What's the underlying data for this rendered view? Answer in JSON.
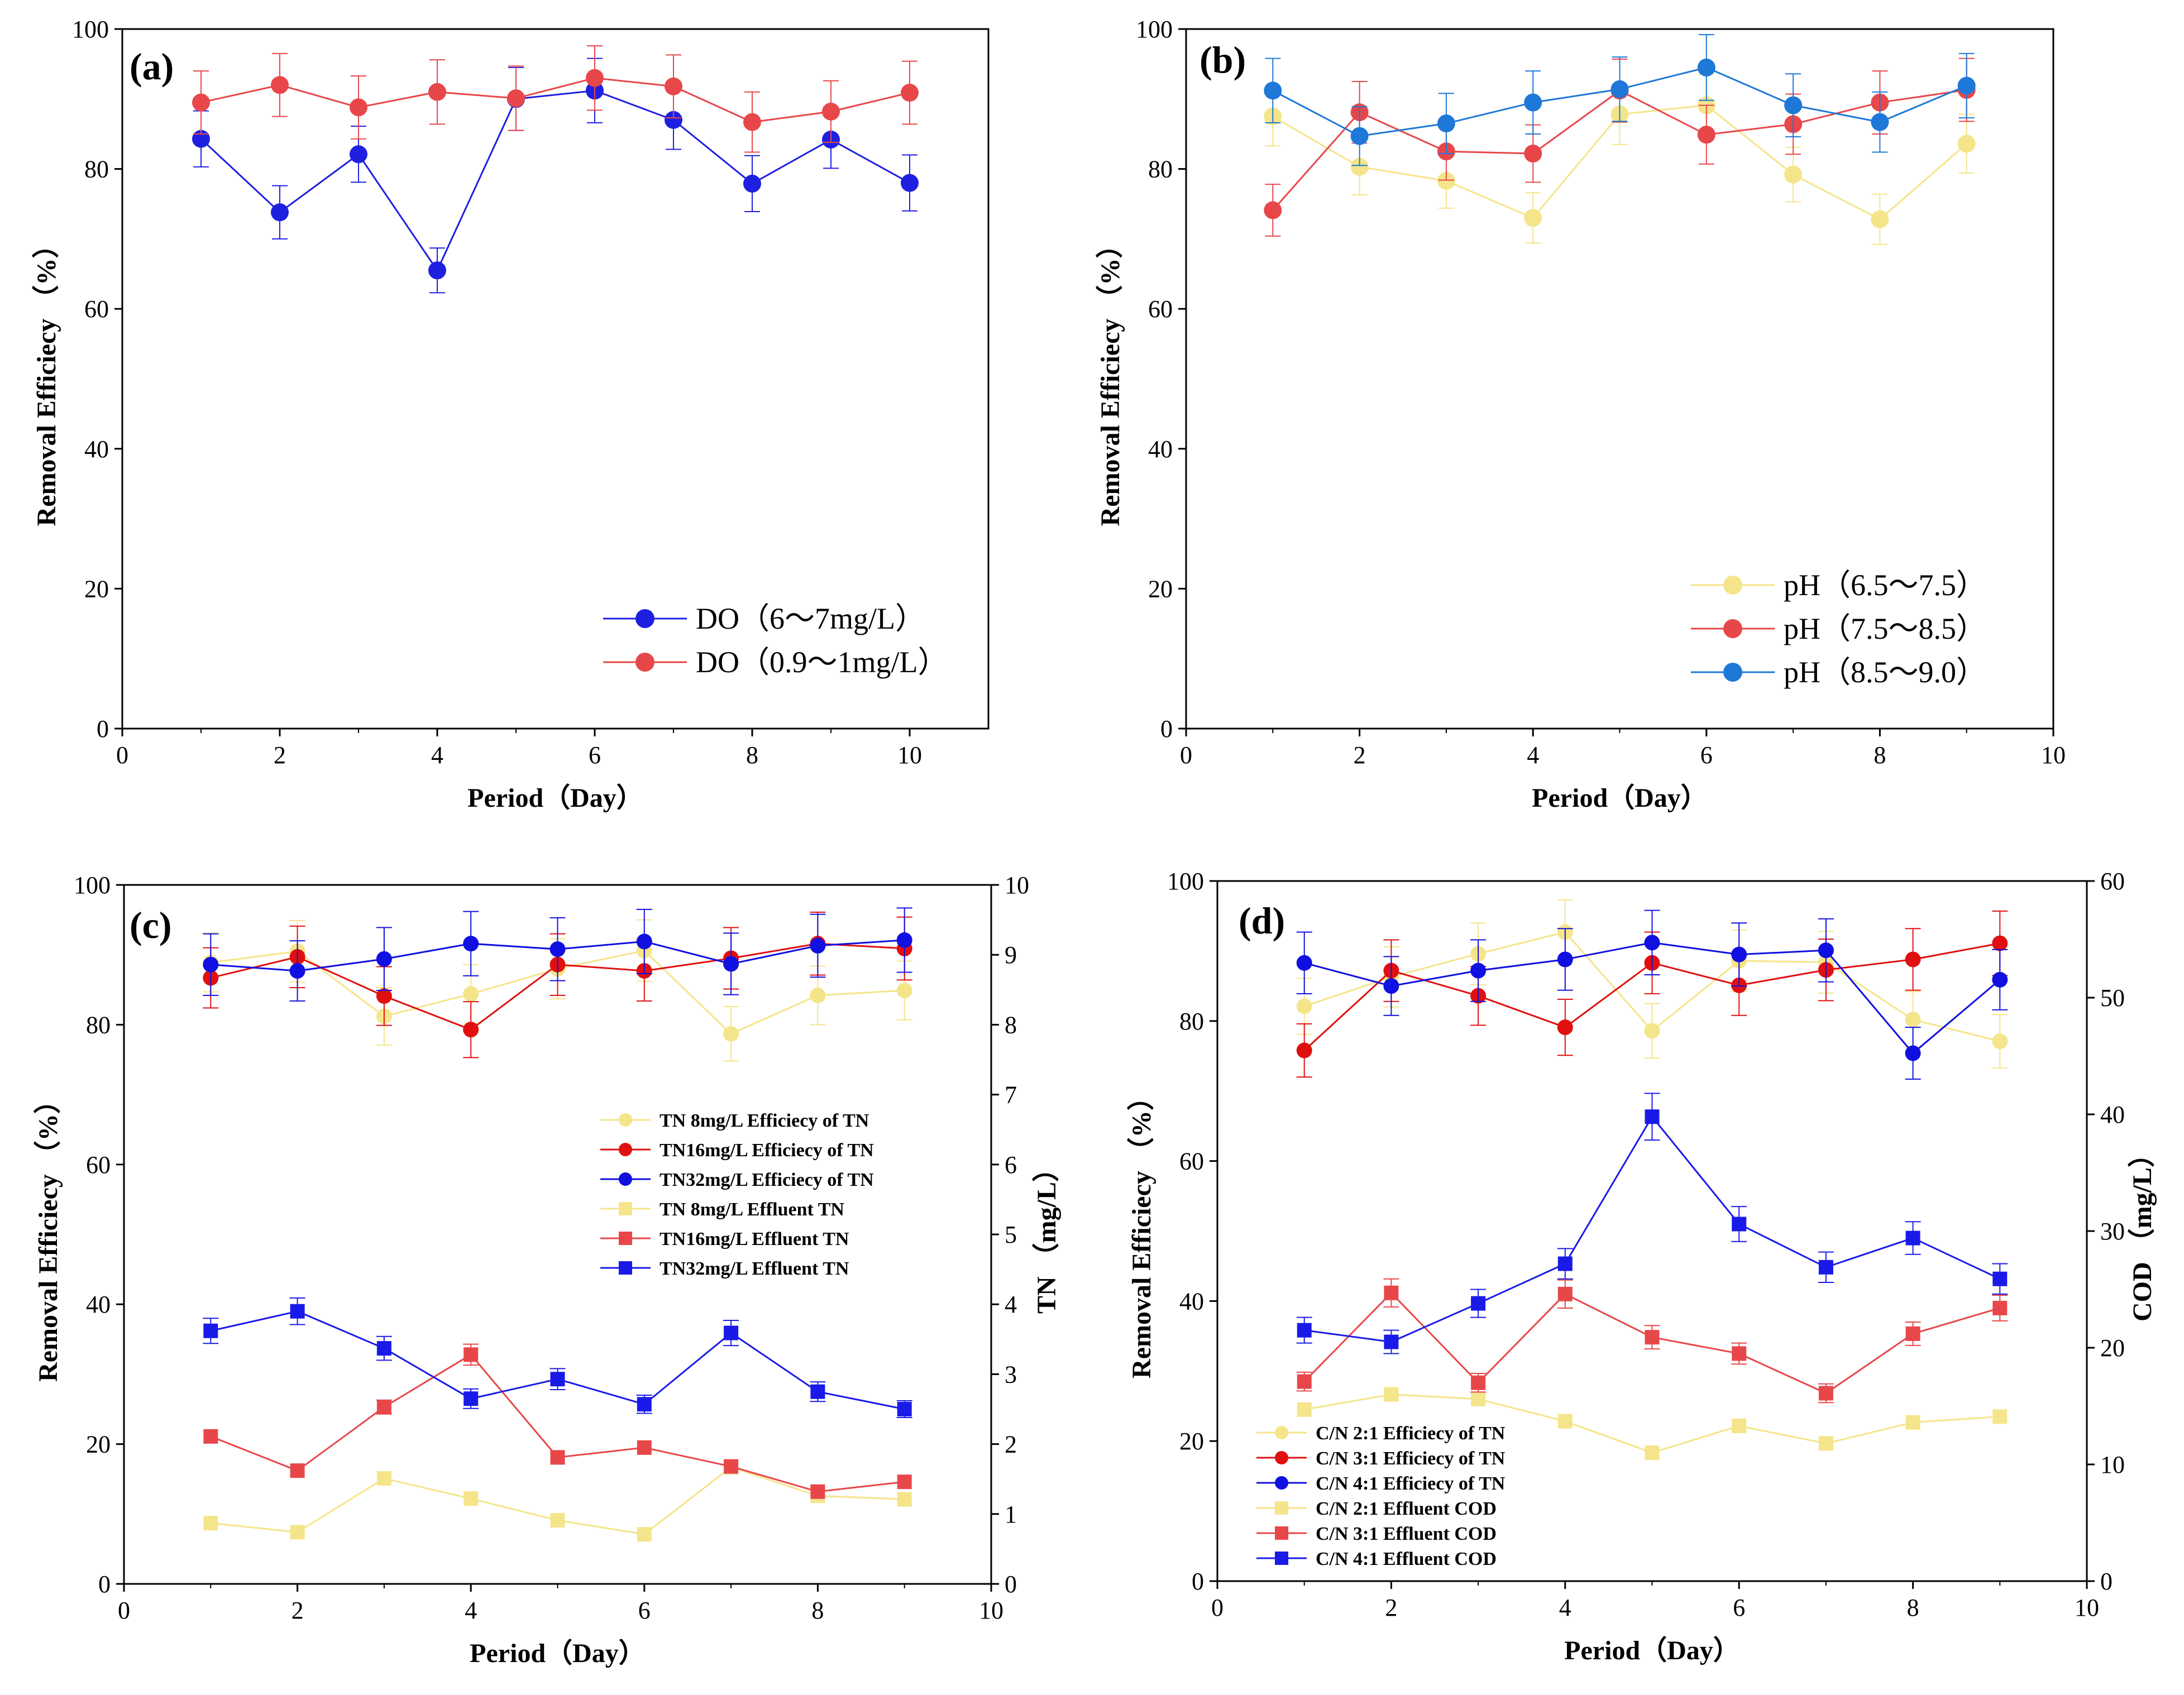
{
  "chart_data": [
    {
      "panel": "(a)",
      "type": "line",
      "xlabel": "Period（Day）",
      "ylabel": "Removal Efficiecy （%）",
      "xlim": [
        0,
        11
      ],
      "ylim": [
        0,
        100
      ],
      "xticks": [
        0,
        2,
        4,
        6,
        8,
        10
      ],
      "yticks": [
        0,
        20,
        40,
        60,
        80,
        100
      ],
      "legend_position": "bottom-right",
      "legend_style": "large",
      "series": [
        {
          "name": "DO（6～7mg/L）",
          "color": "#1f1fe0",
          "marker": "circle",
          "axis": "left",
          "x": [
            1,
            2,
            3,
            4,
            5,
            6,
            7,
            8,
            9,
            10
          ],
          "values": [
            84.3,
            73.8,
            82.1,
            65.5,
            90.0,
            91.2,
            87.0,
            77.9,
            84.2,
            78.0
          ],
          "errors": [
            4.0,
            3.8,
            4.0,
            3.2,
            4.5,
            4.6,
            4.2,
            4.0,
            4.1,
            4.0
          ]
        },
        {
          "name": "DO（0.9～1mg/L）",
          "color": "#e8474a",
          "marker": "circle",
          "axis": "left",
          "x": [
            1,
            2,
            3,
            4,
            5,
            6,
            7,
            8,
            9,
            10
          ],
          "values": [
            89.5,
            92.0,
            88.8,
            91.0,
            90.1,
            93.0,
            91.8,
            86.7,
            88.2,
            90.9
          ],
          "errors": [
            4.5,
            4.5,
            4.5,
            4.6,
            4.6,
            4.6,
            4.5,
            4.3,
            4.4,
            4.5
          ]
        }
      ]
    },
    {
      "panel": "(b)",
      "type": "line",
      "xlabel": "Period（Day）",
      "ylabel": "Removal Efficiecy （%）",
      "xlim": [
        0,
        10
      ],
      "ylim": [
        0,
        100
      ],
      "xticks": [
        0,
        2,
        4,
        6,
        8,
        10
      ],
      "yticks": [
        0,
        20,
        40,
        60,
        80,
        100
      ],
      "legend_position": "bottom-right",
      "legend_style": "large",
      "series": [
        {
          "name": "pH（6.5～7.5）",
          "color": "#f5e58a",
          "marker": "circle",
          "axis": "left",
          "x": [
            1,
            2,
            3,
            4,
            5,
            6,
            7,
            8,
            9
          ],
          "values": [
            87.5,
            80.3,
            78.3,
            73.0,
            87.8,
            89.1,
            79.2,
            72.8,
            83.6
          ],
          "errors": [
            4.2,
            4.0,
            3.9,
            3.6,
            4.3,
            4.4,
            3.9,
            3.6,
            4.2
          ]
        },
        {
          "name": "pH（7.5～8.5）",
          "color": "#e8474a",
          "marker": "circle",
          "axis": "left",
          "x": [
            1,
            2,
            3,
            4,
            5,
            6,
            7,
            8,
            9
          ],
          "values": [
            74.1,
            88.1,
            82.5,
            82.2,
            91.2,
            84.9,
            86.4,
            89.5,
            91.3
          ],
          "errors": [
            3.7,
            4.4,
            4.1,
            4.1,
            4.5,
            4.2,
            4.3,
            4.5,
            4.5
          ]
        },
        {
          "name": "pH（8.5～9.0）",
          "color": "#1e78d8",
          "marker": "circle",
          "axis": "left",
          "x": [
            1,
            2,
            3,
            4,
            5,
            6,
            7,
            8,
            9
          ],
          "values": [
            91.2,
            84.7,
            86.5,
            89.5,
            91.4,
            94.5,
            89.1,
            86.7,
            91.9
          ],
          "errors": [
            4.6,
            4.2,
            4.3,
            4.5,
            4.6,
            4.7,
            4.5,
            4.3,
            4.6
          ]
        }
      ]
    },
    {
      "panel": "(c)",
      "type": "line",
      "xlabel": "Period（Day）",
      "ylabel": "Removal Efficiecy （%）",
      "ylabel_right": "TN （mg/L）",
      "xlim": [
        0,
        10
      ],
      "ylim": [
        0,
        100
      ],
      "ylim_right": [
        0,
        10
      ],
      "xticks": [
        0,
        2,
        4,
        6,
        8,
        10
      ],
      "yticks": [
        0,
        20,
        40,
        60,
        80,
        100
      ],
      "yticks_right": [
        0,
        1,
        2,
        3,
        4,
        5,
        6,
        7,
        8,
        9,
        10
      ],
      "legend_position": "center-right",
      "legend_style": "small",
      "series": [
        {
          "name": "TN  8mg/L Efficiecy of TN",
          "color": "#f5e58a",
          "marker": "circle",
          "axis": "left",
          "x": [
            1,
            2,
            3,
            4,
            5,
            6,
            7,
            8,
            9
          ],
          "values": [
            88.9,
            90.5,
            81.2,
            84.4,
            88.0,
            90.6,
            78.7,
            84.2,
            84.9
          ],
          "errors": [
            4.2,
            4.4,
            4.1,
            4.2,
            4.3,
            4.4,
            3.9,
            4.2,
            4.2
          ]
        },
        {
          "name": "TN16mg/L Efficiecy of TN",
          "color": "#e01010",
          "marker": "circle",
          "axis": "left",
          "x": [
            1,
            2,
            3,
            4,
            5,
            6,
            7,
            8,
            9
          ],
          "values": [
            86.7,
            89.7,
            84.1,
            79.3,
            88.6,
            87.7,
            89.5,
            91.6,
            90.9
          ],
          "errors": [
            4.3,
            4.4,
            4.2,
            4.0,
            4.4,
            4.3,
            4.4,
            4.5,
            4.5
          ]
        },
        {
          "name": "TN32mg/L Efficiecy of TN",
          "color": "#1010e0",
          "marker": "circle",
          "axis": "left",
          "x": [
            1,
            2,
            3,
            4,
            5,
            6,
            7,
            8,
            9
          ],
          "values": [
            88.6,
            87.7,
            89.4,
            91.6,
            90.8,
            91.9,
            88.7,
            91.3,
            92.1
          ],
          "errors": [
            4.4,
            4.3,
            4.5,
            4.6,
            4.5,
            4.6,
            4.4,
            4.5,
            4.6
          ]
        },
        {
          "name": "TN  8mg/L Effluent TN",
          "color": "#f5e58a",
          "marker": "square",
          "axis": "right",
          "x": [
            1,
            2,
            3,
            4,
            5,
            6,
            7,
            8,
            9
          ],
          "values": [
            0.87,
            0.74,
            1.51,
            1.22,
            0.91,
            0.71,
            1.67,
            1.26,
            1.21
          ],
          "errors": [
            0.0,
            0.0,
            0.0,
            0.0,
            0.0,
            0.0,
            0.0,
            0.0,
            0.0
          ]
        },
        {
          "name": "TN16mg/L Effluent TN",
          "color": "#e8474a",
          "marker": "square",
          "axis": "right",
          "x": [
            1,
            2,
            3,
            4,
            5,
            6,
            7,
            8,
            9
          ],
          "values": [
            2.11,
            1.62,
            2.53,
            3.28,
            1.81,
            1.95,
            1.68,
            1.32,
            1.46
          ],
          "errors": [
            0.0,
            0.0,
            0.1,
            0.15,
            0.0,
            0.0,
            0.0,
            0.0,
            0.0
          ]
        },
        {
          "name": "TN32mg/L Effluent TN",
          "color": "#1a1ae8",
          "marker": "square",
          "axis": "right",
          "x": [
            1,
            2,
            3,
            4,
            5,
            6,
            7,
            8,
            9
          ],
          "values": [
            3.62,
            3.9,
            3.37,
            2.65,
            2.93,
            2.57,
            3.59,
            2.75,
            2.5
          ],
          "errors": [
            0.18,
            0.19,
            0.17,
            0.14,
            0.15,
            0.13,
            0.18,
            0.14,
            0.12
          ]
        }
      ]
    },
    {
      "panel": "(d)",
      "type": "line",
      "xlabel": "Period（Day）",
      "ylabel": "Removal Efficiecy （%）",
      "ylabel_right": "COD （mg/L）",
      "xlim": [
        0,
        10
      ],
      "ylim": [
        0,
        100
      ],
      "ylim_right": [
        0,
        60
      ],
      "xticks": [
        0,
        2,
        4,
        6,
        8,
        10
      ],
      "yticks": [
        0,
        20,
        40,
        60,
        80,
        100
      ],
      "yticks_right": [
        0,
        10,
        20,
        30,
        40,
        50,
        60
      ],
      "legend_position": "bottom-left",
      "legend_style": "small",
      "series": [
        {
          "name": "C/N 2:1 Efficiecy of TN",
          "color": "#f5e58a",
          "marker": "circle",
          "axis": "left",
          "x": [
            1,
            2,
            3,
            4,
            5,
            6,
            7,
            8,
            9
          ],
          "values": [
            82.1,
            86.3,
            89.6,
            92.7,
            78.6,
            88.6,
            88.4,
            80.2,
            77.1
          ],
          "errors": [
            4.0,
            4.3,
            4.4,
            4.6,
            3.9,
            4.4,
            4.4,
            4.0,
            3.8
          ]
        },
        {
          "name": "C/N 3:1 Efficiecy of TN",
          "color": "#e01010",
          "marker": "circle",
          "axis": "left",
          "x": [
            1,
            2,
            3,
            4,
            5,
            6,
            7,
            8,
            9
          ],
          "values": [
            75.8,
            87.2,
            83.6,
            79.1,
            88.3,
            85.1,
            87.3,
            88.8,
            91.1
          ],
          "errors": [
            3.8,
            4.4,
            4.2,
            4.0,
            4.4,
            4.3,
            4.4,
            4.4,
            4.6
          ]
        },
        {
          "name": "C/N 4:1 Efficiecy of TN",
          "color": "#1010e0",
          "marker": "circle",
          "axis": "left",
          "x": [
            1,
            2,
            3,
            4,
            5,
            6,
            7,
            8,
            9
          ],
          "values": [
            88.3,
            85.0,
            87.2,
            88.8,
            91.2,
            89.5,
            90.1,
            75.4,
            85.9
          ],
          "errors": [
            4.4,
            4.2,
            4.4,
            4.4,
            4.6,
            4.5,
            4.5,
            3.7,
            4.3
          ]
        },
        {
          "name": "C/N 2:1 Effluent COD",
          "color": "#f5e58a",
          "marker": "square",
          "axis": "right",
          "x": [
            1,
            2,
            3,
            4,
            5,
            6,
            7,
            8,
            9
          ],
          "values": [
            14.7,
            16.0,
            15.6,
            13.7,
            11.0,
            13.3,
            11.8,
            13.6,
            14.1
          ],
          "errors": [
            0.0,
            0.0,
            0.0,
            0.0,
            0.0,
            0.0,
            0.0,
            0.0,
            0.0
          ]
        },
        {
          "name": "C/N 3:1 Effluent COD",
          "color": "#e8474a",
          "marker": "square",
          "axis": "right",
          "x": [
            1,
            2,
            3,
            4,
            5,
            6,
            7,
            8,
            9
          ],
          "values": [
            17.1,
            24.7,
            17.0,
            24.6,
            20.9,
            19.5,
            16.1,
            21.2,
            23.4
          ],
          "errors": [
            0.8,
            1.2,
            0.8,
            1.2,
            1.0,
            0.9,
            0.8,
            1.0,
            1.1
          ]
        },
        {
          "name": "C/N 4:1 Effluent COD",
          "color": "#1a1ae8",
          "marker": "square",
          "axis": "right",
          "x": [
            1,
            2,
            3,
            4,
            5,
            6,
            7,
            8,
            9
          ],
          "values": [
            21.5,
            20.5,
            23.8,
            27.2,
            39.8,
            30.6,
            26.9,
            29.4,
            25.9
          ],
          "errors": [
            1.1,
            1.0,
            1.2,
            1.3,
            2.0,
            1.5,
            1.3,
            1.4,
            1.3
          ]
        }
      ]
    }
  ]
}
